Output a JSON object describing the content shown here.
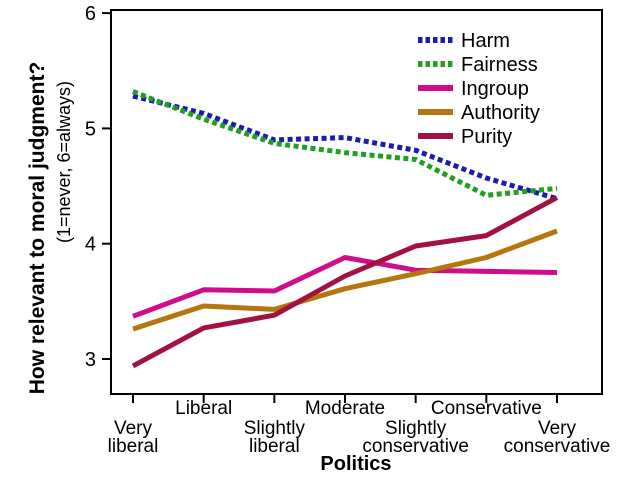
{
  "chart_data": {
    "type": "line",
    "title": "",
    "xlabel": "Politics",
    "ylabel": "How relevant to moral judgment?",
    "ylabel_sub": "(1=never, 6=always)",
    "categories": [
      "Very liberal",
      "Liberal",
      "Slightly liberal",
      "Moderate",
      "Slightly conservative",
      "Conservative",
      "Very conservative"
    ],
    "x_tick_labels": [
      {
        "lines": [
          "Very",
          "liberal"
        ],
        "row": 2
      },
      {
        "lines": [
          "Liberal"
        ],
        "row": 1
      },
      {
        "lines": [
          "Slightly",
          "liberal"
        ],
        "row": 2
      },
      {
        "lines": [
          "Moderate"
        ],
        "row": 1
      },
      {
        "lines": [
          "Slightly",
          "conservative"
        ],
        "row": 2
      },
      {
        "lines": [
          "Conservative"
        ],
        "row": 1
      },
      {
        "lines": [
          "Very",
          "conservative"
        ],
        "row": 2
      }
    ],
    "yticks": [
      "3",
      "4",
      "5",
      "6"
    ],
    "ylim": [
      2.7,
      6.03
    ],
    "grid": false,
    "legend_position": "top-right-inside",
    "axis_color": "#000000",
    "background_color": "#ffffff",
    "series": [
      {
        "name": "Harm",
        "color": "#1b1bad",
        "dash": true,
        "values": [
          5.28,
          5.13,
          4.9,
          4.92,
          4.81,
          4.57,
          4.39
        ]
      },
      {
        "name": "Fairness",
        "color": "#1f9e1f",
        "dash": true,
        "values": [
          5.32,
          5.08,
          4.87,
          4.79,
          4.73,
          4.42,
          4.48
        ]
      },
      {
        "name": "Ingroup",
        "color": "#cf0d8c",
        "dash": false,
        "values": [
          3.37,
          3.6,
          3.59,
          3.88,
          3.77,
          3.76,
          3.75
        ]
      },
      {
        "name": "Authority",
        "color": "#b5760d",
        "dash": false,
        "values": [
          3.26,
          3.46,
          3.43,
          3.61,
          3.74,
          3.88,
          4.11
        ]
      },
      {
        "name": "Purity",
        "color": "#a31140",
        "dash": false,
        "values": [
          2.94,
          3.27,
          3.38,
          3.72,
          3.98,
          4.07,
          4.4
        ]
      }
    ]
  }
}
